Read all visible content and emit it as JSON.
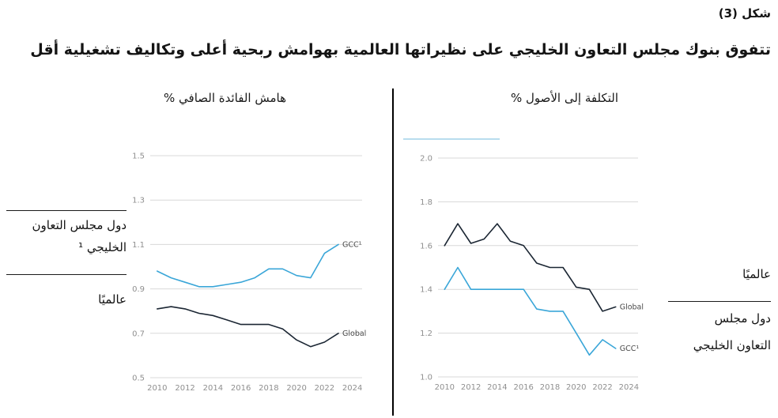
{
  "figure_label": "شكل (3)",
  "title": "تتفوق بنوك مجلس التعاون الخليجي على نظيراتها العالمية بهوامش ربحية أعلى وتكاليف تشغيلية أقل",
  "colors": {
    "gcc": "#3aa6d8",
    "global": "#1b2633",
    "grid": "#d8d8d8",
    "tick_text": "#8f8f8f",
    "series_label": "#4a4a4a",
    "accent_light": "#b8ddee"
  },
  "left_legend": {
    "gcc_line1": "دول مجلس التعاون",
    "gcc_line2": "الخليجي ¹",
    "global": "عالميًا"
  },
  "right_legend": {
    "global": "عالميًا",
    "gcc_line1": "دول مجلس",
    "gcc_line2": "التعاون الخليجي"
  },
  "chart_data": [
    {
      "type": "line",
      "title": "هامش الفائدة الصافي %",
      "xlabel": "",
      "ylabel": "%",
      "grid": true,
      "legend_position": "end-of-line",
      "x": [
        2010,
        2011,
        2012,
        2013,
        2014,
        2015,
        2016,
        2017,
        2018,
        2019,
        2020,
        2021,
        2022,
        2023
      ],
      "x_ticks": [
        2010,
        2012,
        2014,
        2016,
        2018,
        2020,
        2022,
        2024
      ],
      "ylim": [
        0.5,
        1.5
      ],
      "y_ticks": [
        0.5,
        0.7,
        0.9,
        1.1,
        1.3,
        1.5
      ],
      "series": [
        {
          "name": "GCC¹",
          "color_key": "gcc",
          "values": [
            0.98,
            0.95,
            0.93,
            0.91,
            0.91,
            0.92,
            0.93,
            0.95,
            0.99,
            0.99,
            0.96,
            0.95,
            1.06,
            1.1
          ]
        },
        {
          "name": "Global",
          "color_key": "global",
          "values": [
            0.81,
            0.82,
            0.81,
            0.79,
            0.78,
            0.76,
            0.74,
            0.74,
            0.74,
            0.72,
            0.67,
            0.64,
            0.66,
            0.7
          ]
        }
      ]
    },
    {
      "type": "line",
      "title": "التكلفة إلى الأصول %",
      "xlabel": "",
      "ylabel": "%",
      "grid": true,
      "legend_position": "end-of-line",
      "x": [
        2010,
        2011,
        2012,
        2013,
        2014,
        2015,
        2016,
        2017,
        2018,
        2019,
        2020,
        2021,
        2022,
        2023
      ],
      "x_ticks": [
        2010,
        2012,
        2014,
        2016,
        2018,
        2020,
        2022,
        2024
      ],
      "ylim": [
        1.0,
        2.0
      ],
      "y_ticks": [
        1.0,
        1.2,
        1.4,
        1.6,
        1.8,
        2.0
      ],
      "series": [
        {
          "name": "GCC¹",
          "color_key": "gcc",
          "values": [
            1.4,
            1.5,
            1.4,
            1.4,
            1.4,
            1.4,
            1.4,
            1.31,
            1.3,
            1.3,
            1.2,
            1.1,
            1.17,
            1.13
          ]
        },
        {
          "name": "Global",
          "color_key": "global",
          "values": [
            1.6,
            1.7,
            1.61,
            1.63,
            1.7,
            1.62,
            1.6,
            1.52,
            1.5,
            1.5,
            1.41,
            1.4,
            1.3,
            1.32
          ]
        }
      ]
    }
  ]
}
